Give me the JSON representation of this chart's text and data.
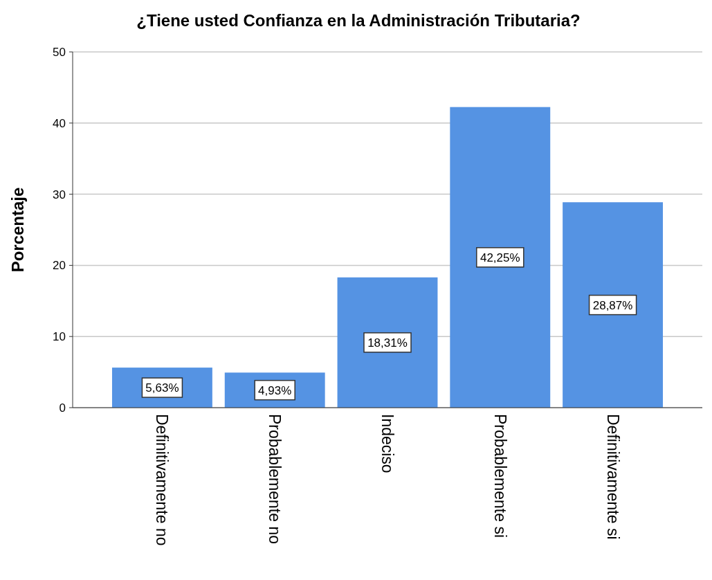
{
  "chart_data": {
    "type": "bar",
    "title": "¿Tiene usted Confianza en la Administración Tributaria?",
    "ylabel": "Porcentaje",
    "categories": [
      "Definitivamente no",
      "Probablemente no",
      "Indeciso",
      "Probablemente si",
      "Definitivamente si"
    ],
    "values": [
      5.63,
      4.93,
      18.31,
      42.25,
      28.87
    ],
    "value_labels": [
      "5,63%",
      "4,93%",
      "18,31%",
      "42,25%",
      "28,87%"
    ],
    "color": "#5593e3",
    "ylim": [
      0,
      50
    ],
    "yticks": [
      0,
      10,
      20,
      30,
      40,
      50
    ],
    "grid": "y"
  }
}
